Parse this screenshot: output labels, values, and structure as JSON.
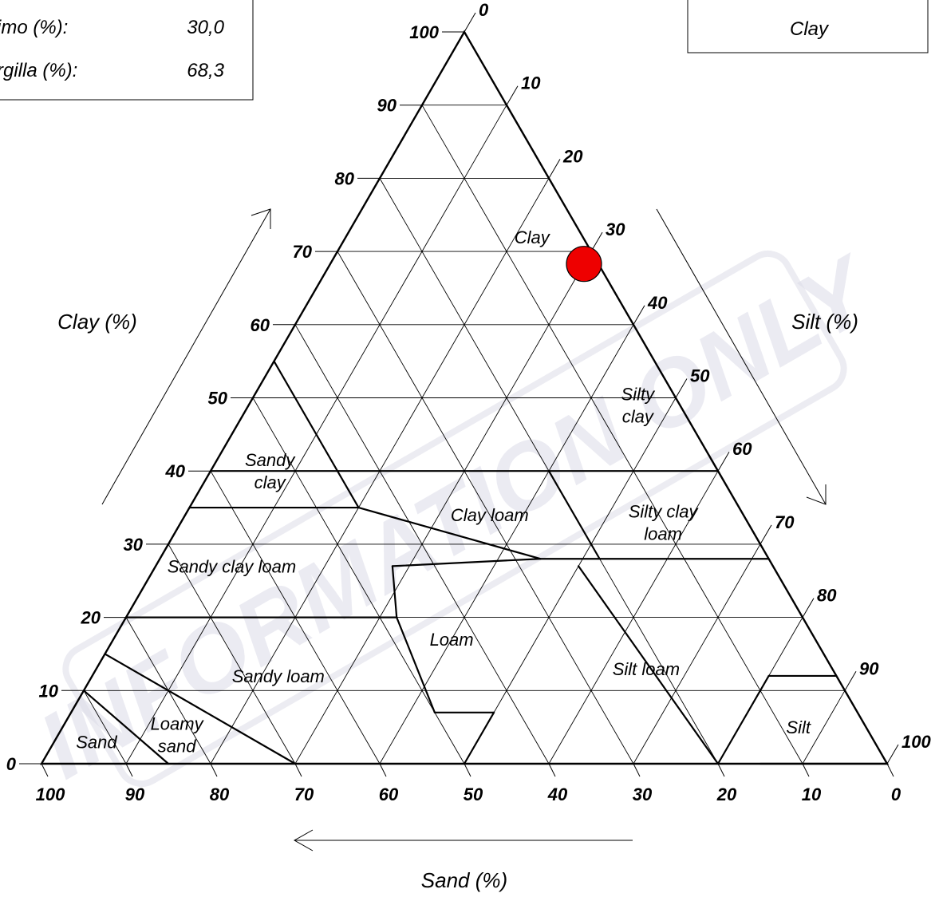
{
  "info_box": {
    "rows": [
      {
        "label": "imo (%):",
        "value": "30,0"
      },
      {
        "label": "rgilla (%):",
        "value": "68,3"
      }
    ]
  },
  "result_box": {
    "text": "Clay"
  },
  "watermark": "INFORMATION ONLY",
  "axes": {
    "clay_label": "Clay (%)",
    "silt_label": "Silt (%)",
    "sand_label": "Sand (%)",
    "clay_ticks": [
      "0",
      "10",
      "20",
      "30",
      "40",
      "50",
      "60",
      "70",
      "80",
      "90",
      "100"
    ],
    "silt_ticks": [
      "0",
      "10",
      "20",
      "30",
      "40",
      "50",
      "60",
      "70",
      "80",
      "90",
      "100"
    ],
    "sand_ticks": [
      "100",
      "90",
      "80",
      "70",
      "60",
      "50",
      "40",
      "30",
      "20",
      "10",
      "0"
    ]
  },
  "regions": [
    {
      "key": "clay",
      "lines": [
        "Clay"
      ],
      "clay": 72,
      "silt": 22,
      "cx": 1.0
    },
    {
      "key": "silty-clay",
      "lines": [
        "Silty",
        "clay"
      ],
      "clay": 49,
      "silt": 46,
      "cx": 0.97
    },
    {
      "key": "sandy-clay",
      "lines": [
        "Sandy",
        "clay"
      ],
      "clay": 40,
      "silt": 7,
      "cx": 1.0
    },
    {
      "key": "clay-loam",
      "lines": [
        "Clay loam"
      ],
      "clay": 34,
      "silt": 36,
      "cx": 1.0
    },
    {
      "key": "silty-clay-loam",
      "lines": [
        "Silty clay",
        "loam"
      ],
      "clay": 33,
      "silt": 57,
      "cx": 1.0
    },
    {
      "key": "sandy-clay-loam",
      "lines": [
        "Sandy clay loam"
      ],
      "clay": 27,
      "silt": 9,
      "cx": 1.0
    },
    {
      "key": "loam",
      "lines": [
        "Loam"
      ],
      "clay": 17,
      "silt": 40,
      "cx": 1.0
    },
    {
      "key": "sandy-loam",
      "lines": [
        "Sandy loam"
      ],
      "clay": 12,
      "silt": 22,
      "cx": 1.0
    },
    {
      "key": "silt-loam",
      "lines": [
        "Silt loam"
      ],
      "clay": 13,
      "silt": 65,
      "cx": 1.0
    },
    {
      "key": "silt",
      "lines": [
        "Silt"
      ],
      "clay": 5,
      "silt": 87,
      "cx": 1.0
    },
    {
      "key": "loamy-sand",
      "lines": [
        "Loamy",
        "sand"
      ],
      "clay": 4,
      "silt": 14,
      "cx": 1.0
    },
    {
      "key": "sand",
      "lines": [
        "Sand"
      ],
      "clay": 3,
      "silt": 5,
      "cx": 1.0
    }
  ],
  "sample_point": {
    "clay": 68.3,
    "silt": 30.0,
    "color": "#ee0000"
  }
}
